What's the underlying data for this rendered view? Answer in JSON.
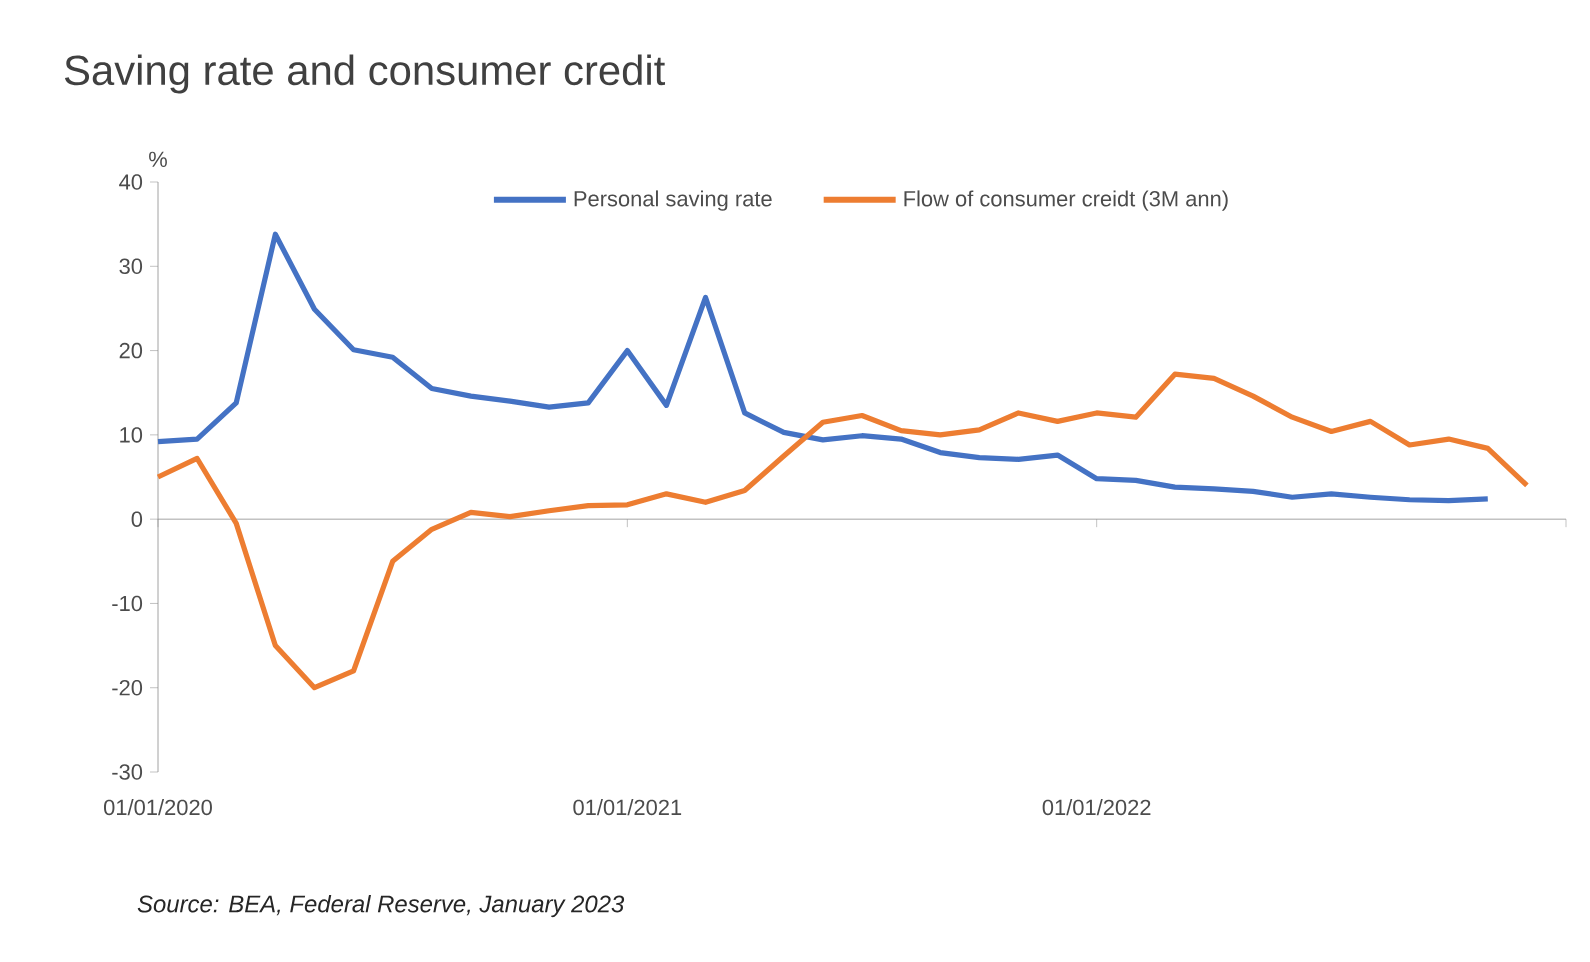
{
  "chart_data": {
    "type": "line",
    "title": "Saving rate and consumer credit",
    "ylabel": "%",
    "x": [
      "2020-01",
      "2020-02",
      "2020-03",
      "2020-04",
      "2020-05",
      "2020-06",
      "2020-07",
      "2020-08",
      "2020-09",
      "2020-10",
      "2020-11",
      "2020-12",
      "2021-01",
      "2021-02",
      "2021-03",
      "2021-04",
      "2021-05",
      "2021-06",
      "2021-07",
      "2021-08",
      "2021-09",
      "2021-10",
      "2021-11",
      "2021-12",
      "2022-01",
      "2022-02",
      "2022-03",
      "2022-04",
      "2022-05",
      "2022-06",
      "2022-07",
      "2022-08",
      "2022-09",
      "2022-10",
      "2022-11",
      "2022-12"
    ],
    "series": [
      {
        "name": "Personal saving rate",
        "color": "#4472c4",
        "values": [
          9.2,
          9.5,
          13.8,
          33.8,
          24.9,
          20.1,
          19.2,
          15.5,
          14.6,
          14.0,
          13.3,
          13.8,
          20.0,
          13.5,
          26.3,
          12.6,
          10.3,
          9.4,
          9.9,
          9.5,
          7.9,
          7.3,
          7.1,
          7.6,
          4.8,
          4.6,
          3.8,
          3.6,
          3.3,
          2.6,
          3.0,
          2.6,
          2.3,
          2.2,
          2.4,
          null
        ]
      },
      {
        "name": "Flow of consumer creidt (3M ann)",
        "color": "#ed7d31",
        "values": [
          5.0,
          7.2,
          -0.5,
          -15.0,
          -20.0,
          -18.0,
          -5.0,
          -1.2,
          0.8,
          0.3,
          1.0,
          1.6,
          1.7,
          3.0,
          2.0,
          3.4,
          7.5,
          11.5,
          12.3,
          10.5,
          10.0,
          10.6,
          12.6,
          11.6,
          12.6,
          12.1,
          17.2,
          16.7,
          14.6,
          12.1,
          10.4,
          11.6,
          8.8,
          9.5,
          8.4,
          4.0
        ]
      }
    ],
    "xlim": [
      "2020-01-01",
      "2023-01-01"
    ],
    "xticks": [
      {
        "value": "2020-01-01",
        "label": "01/01/2020"
      },
      {
        "value": "2021-01-01",
        "label": "01/01/2021"
      },
      {
        "value": "2022-01-01",
        "label": "01/01/2022"
      },
      {
        "value": "2023-01-01",
        "label": null
      }
    ],
    "ylim": [
      -30,
      40
    ],
    "yticks": [
      -30,
      -20,
      -10,
      0,
      10,
      20,
      30,
      40
    ],
    "legend": "top",
    "marker": "none",
    "line_style": "solid",
    "annotations": [
      "Source: BEA, Federal Reserve, January 2023"
    ]
  }
}
